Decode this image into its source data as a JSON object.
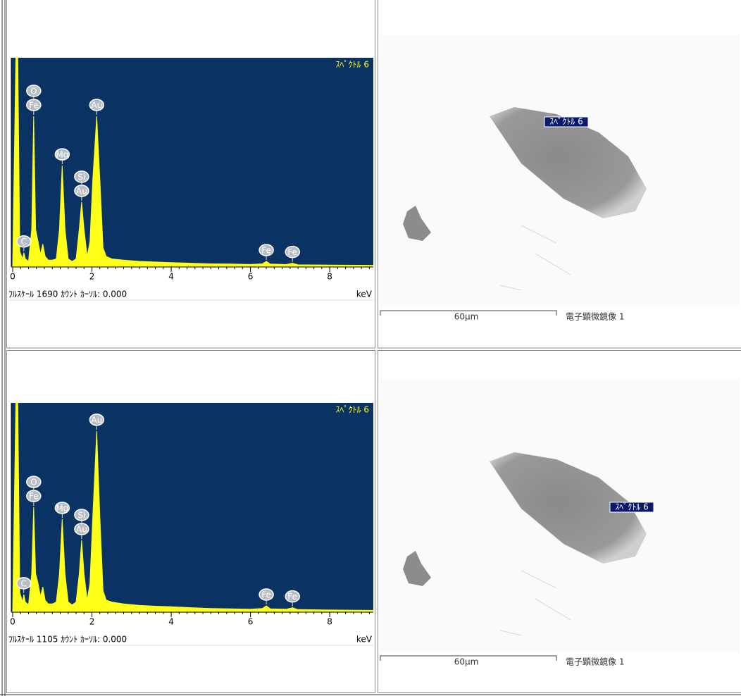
{
  "chart_data": [
    {
      "type": "line",
      "title": "ｽﾍﾟｸﾄﾙ 6",
      "footer": "ﾌﾙｽｹｰﾙ 1690 ｶｳﾝﾄ ｶｰｿﾙ: 0.000",
      "x_label": "keV",
      "background": "#0a3262",
      "color": "#ffff1a",
      "xlim": [
        0,
        9.1
      ],
      "xticks": [
        0,
        2,
        4,
        6,
        8
      ],
      "ylim": [
        0,
        1690
      ],
      "x": [
        0,
        0.08,
        0.1,
        0.13,
        0.18,
        0.25,
        0.28,
        0.32,
        0.4,
        0.48,
        0.53,
        0.58,
        0.64,
        0.7,
        0.76,
        0.82,
        0.9,
        1.0,
        1.1,
        1.18,
        1.25,
        1.32,
        1.4,
        1.5,
        1.6,
        1.68,
        1.74,
        1.8,
        1.88,
        1.95,
        2.02,
        2.12,
        2.2,
        2.28,
        2.36,
        2.5,
        2.8,
        3.2,
        3.6,
        4.0,
        4.5,
        5.0,
        5.5,
        6.0,
        6.3,
        6.4,
        6.5,
        6.9,
        7.06,
        7.2,
        8.0,
        9.1
      ],
      "values": [
        0,
        1690,
        1690,
        1690,
        120,
        60,
        110,
        60,
        40,
        300,
        1216,
        300,
        200,
        100,
        180,
        80,
        50,
        50,
        60,
        300,
        816,
        300,
        60,
        40,
        60,
        300,
        520,
        300,
        80,
        200,
        700,
        1216,
        700,
        150,
        80,
        60,
        50,
        40,
        35,
        30,
        25,
        20,
        18,
        15,
        20,
        40,
        18,
        14,
        25,
        12,
        10,
        8
      ],
      "annotations": [
        {
          "text": "Fe",
          "x": 0.53
        },
        {
          "text": "O",
          "x": 0.53
        },
        {
          "text": "Au",
          "x": 1.74
        },
        {
          "text": "Si",
          "x": 1.74
        },
        {
          "text": "Au",
          "x": 2.12
        },
        {
          "text": "Mg",
          "x": 1.25
        },
        {
          "text": "C",
          "x": 0.28
        },
        {
          "text": "Fe",
          "x": 6.4
        },
        {
          "text": "Fe",
          "x": 7.06
        }
      ]
    },
    {
      "type": "line",
      "title": "ｽﾍﾟｸﾄﾙ 6",
      "footer": "ﾌﾙｽｹｰﾙ 1105 ｶｳﾝﾄ ｶｰｿﾙ: 0.000",
      "x_label": "keV",
      "background": "#0a3262",
      "color": "#ffff1a",
      "xlim": [
        0,
        9.1
      ],
      "xticks": [
        0,
        2,
        4,
        6,
        8
      ],
      "ylim": [
        0,
        1105
      ],
      "x": [
        0,
        0.08,
        0.1,
        0.13,
        0.18,
        0.25,
        0.28,
        0.32,
        0.4,
        0.48,
        0.53,
        0.58,
        0.64,
        0.7,
        0.76,
        0.82,
        0.9,
        1.0,
        1.1,
        1.18,
        1.25,
        1.32,
        1.4,
        1.5,
        1.6,
        1.68,
        1.74,
        1.8,
        1.88,
        1.95,
        2.02,
        2.12,
        2.2,
        2.28,
        2.36,
        2.5,
        2.8,
        3.2,
        3.6,
        4.0,
        4.5,
        5.0,
        5.5,
        6.0,
        6.3,
        6.4,
        6.5,
        6.9,
        7.06,
        7.2,
        8.0,
        9.1
      ],
      "values": [
        0,
        1105,
        1105,
        1105,
        100,
        50,
        90,
        50,
        35,
        200,
        552,
        200,
        150,
        80,
        130,
        60,
        40,
        40,
        50,
        200,
        489,
        200,
        50,
        35,
        50,
        200,
        377,
        200,
        60,
        150,
        500,
        956,
        500,
        110,
        60,
        50,
        40,
        32,
        28,
        25,
        20,
        16,
        14,
        12,
        16,
        30,
        14,
        12,
        20,
        10,
        8,
        6
      ],
      "annotations": [
        {
          "text": "Fe",
          "x": 0.53
        },
        {
          "text": "O",
          "x": 0.53
        },
        {
          "text": "Au",
          "x": 1.74
        },
        {
          "text": "Si",
          "x": 1.74
        },
        {
          "text": "Au",
          "x": 2.12
        },
        {
          "text": "Mg",
          "x": 1.25
        },
        {
          "text": "C",
          "x": 0.28
        },
        {
          "text": "Fe",
          "x": 6.4
        },
        {
          "text": "Fe",
          "x": 7.06
        }
      ]
    }
  ],
  "images": [
    {
      "label": "ｽﾍﾟｸﾄﾙ 6",
      "scale_bar": "60µm",
      "caption": "電子顕微鏡像 1"
    },
    {
      "label": "ｽﾍﾟｸﾄﾙ 6",
      "scale_bar": "60µm",
      "caption": "電子顕微鏡像 1"
    }
  ]
}
